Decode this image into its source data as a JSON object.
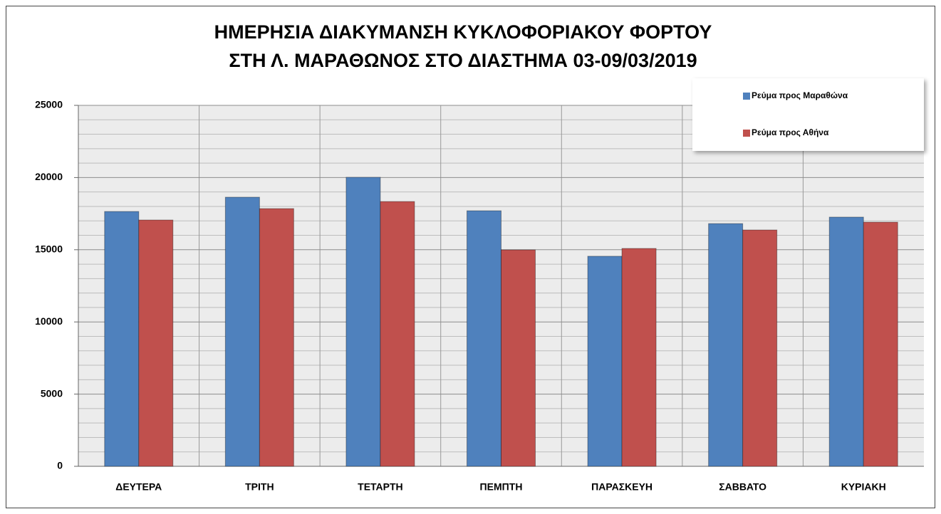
{
  "chart_data": {
    "type": "bar",
    "title": [
      "ΗΜΕΡΗΣΙΑ ΔΙΑΚΥΜΑΝΣΗ  ΚΥΚΛΟΦΟΡΙΑΚΟΥ  ΦΟΡΤΟΥ",
      "ΣΤΗ Λ. ΜΑΡΑΘΩΝΟΣ  ΣΤΟ ΔΙΑΣΤΗΜΑ  03-09/03/2019"
    ],
    "categories": [
      "ΔΕΥΤΕΡΑ",
      "ΤΡΙΤΗ",
      "ΤΕΤΑΡΤΗ",
      "ΠΕΜΠΤΗ",
      "ΠΑΡΑΣΚΕΥΗ",
      "ΣΑΒΒΑΤΟ",
      "ΚΥΡΙΑΚΗ"
    ],
    "series": [
      {
        "name": "Ρεύμα προς Μαραθώνα",
        "color": "#4f81bd",
        "values": [
          17650,
          18640,
          20020,
          17700,
          14550,
          16810,
          17260
        ]
      },
      {
        "name": "Ρεύμα προς Αθήνα",
        "color": "#c0504d",
        "values": [
          17060,
          17850,
          18340,
          14990,
          15090,
          16370,
          16910
        ]
      }
    ],
    "ylim": [
      0,
      25000
    ],
    "yticks": [
      0,
      5000,
      10000,
      15000,
      20000,
      25000
    ],
    "grid": true,
    "minor_grid": true,
    "legend": "upper right"
  }
}
